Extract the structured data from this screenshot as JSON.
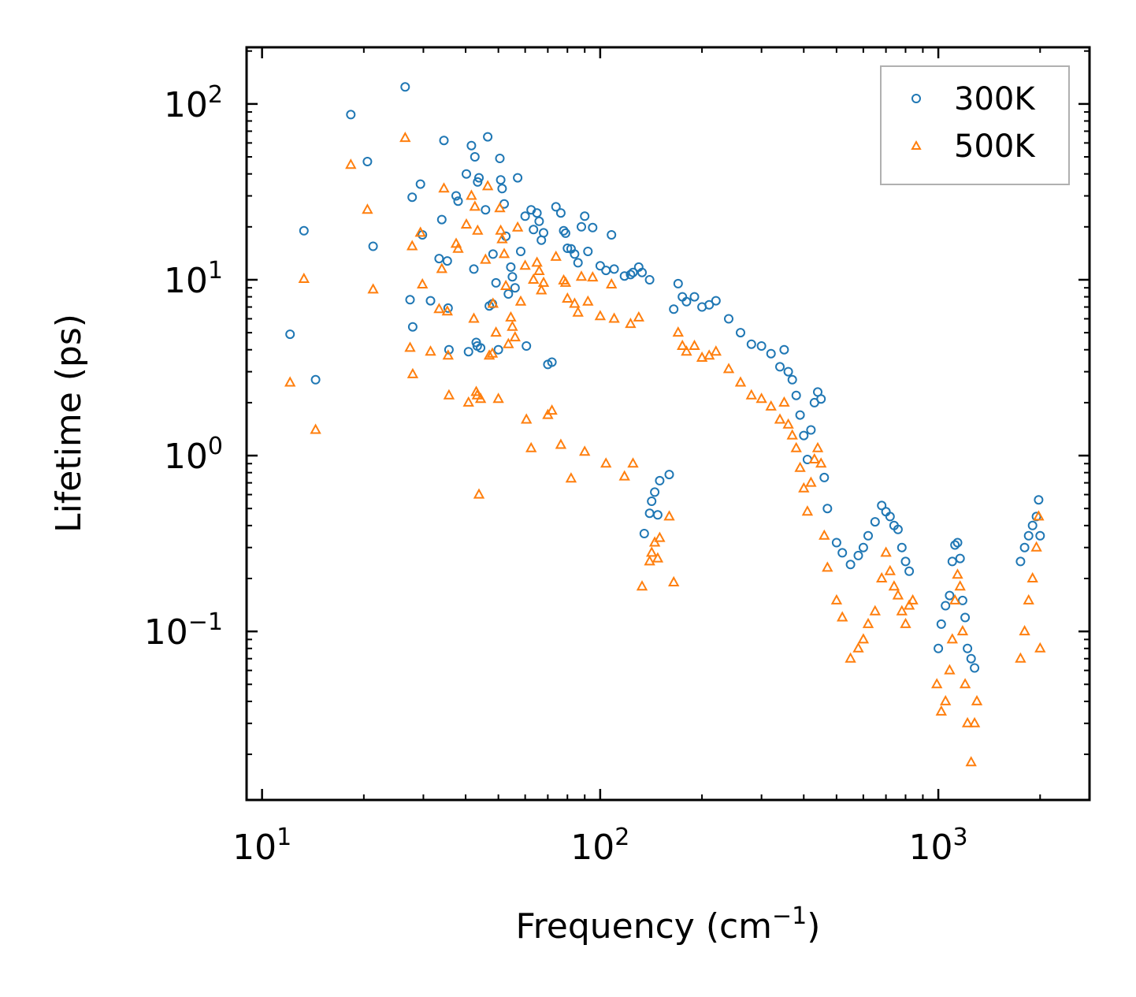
{
  "chart_data": {
    "type": "scatter",
    "xscale": "log",
    "yscale": "log",
    "xlim": [
      9,
      2800
    ],
    "ylim": [
      0.011,
      210
    ],
    "xticks": [
      {
        "value": 10,
        "base": "10",
        "exp": "1"
      },
      {
        "value": 100,
        "base": "10",
        "exp": "2"
      },
      {
        "value": 1000,
        "base": "10",
        "exp": "3"
      }
    ],
    "yticks": [
      {
        "value": 0.1,
        "base": "10",
        "exp": "−1"
      },
      {
        "value": 1,
        "base": "10",
        "exp": "0"
      },
      {
        "value": 10,
        "base": "10",
        "exp": "1"
      },
      {
        "value": 100,
        "base": "10",
        "exp": "2"
      }
    ],
    "xlabel": {
      "main": "Frequency (cm",
      "sup": "−1",
      "end": ")"
    },
    "ylabel": "Lifetime (ps)",
    "legend_position": "top-right",
    "series": [
      {
        "name": "300K",
        "marker": "circle",
        "color": "#1f77b4",
        "points": [
          [
            12.1,
            4.9
          ],
          [
            13.3,
            19.0
          ],
          [
            14.4,
            2.7
          ],
          [
            18.3,
            87
          ],
          [
            20.5,
            47
          ],
          [
            21.3,
            15.5
          ],
          [
            26.5,
            125
          ],
          [
            27.4,
            7.7
          ],
          [
            27.8,
            29.5
          ],
          [
            27.9,
            5.4
          ],
          [
            29.4,
            35
          ],
          [
            29.8,
            18
          ],
          [
            31.5,
            7.6
          ],
          [
            33.4,
            13.2
          ],
          [
            34.0,
            22
          ],
          [
            34.5,
            62
          ],
          [
            35.3,
            12.8
          ],
          [
            35.5,
            6.9
          ],
          [
            35.7,
            4.0
          ],
          [
            37.5,
            30
          ],
          [
            38.0,
            28
          ],
          [
            40.2,
            40
          ],
          [
            40.8,
            3.9
          ],
          [
            41.6,
            58
          ],
          [
            42.3,
            11.5
          ],
          [
            42.6,
            50
          ],
          [
            43.0,
            4.4
          ],
          [
            43.3,
            4.2
          ],
          [
            43.4,
            36
          ],
          [
            43.8,
            38
          ],
          [
            44.3,
            4.1
          ],
          [
            45.8,
            25
          ],
          [
            46.5,
            65
          ],
          [
            47.0,
            7.1
          ],
          [
            48.0,
            7.3
          ],
          [
            48.2,
            14
          ],
          [
            49.2,
            9.6
          ],
          [
            50.0,
            4.0
          ],
          [
            50.5,
            49
          ],
          [
            50.8,
            37
          ],
          [
            51.3,
            33
          ],
          [
            52.0,
            27
          ],
          [
            52.6,
            17.7
          ],
          [
            53.5,
            8.3
          ],
          [
            54.4,
            11.8
          ],
          [
            55.0,
            10.4
          ],
          [
            56.0,
            9.0
          ],
          [
            57.0,
            38
          ],
          [
            58.2,
            14.5
          ],
          [
            60.0,
            23
          ],
          [
            60.5,
            4.2
          ],
          [
            62.5,
            25
          ],
          [
            63.5,
            19.3
          ],
          [
            65.0,
            24
          ],
          [
            66.0,
            21.5
          ],
          [
            67.0,
            16.8
          ],
          [
            68.0,
            18.5
          ],
          [
            70.0,
            3.3
          ],
          [
            72.0,
            3.4
          ],
          [
            74.0,
            26
          ],
          [
            76.5,
            24
          ],
          [
            78.0,
            19
          ],
          [
            79.0,
            18.4
          ],
          [
            80.0,
            15.1
          ],
          [
            82.0,
            15
          ],
          [
            84.0,
            14
          ],
          [
            86.0,
            12.5
          ],
          [
            88.0,
            20
          ],
          [
            90.0,
            23
          ],
          [
            92.0,
            14.5
          ],
          [
            95.0,
            19.8
          ],
          [
            100.0,
            12
          ],
          [
            104.0,
            11.3
          ],
          [
            108.0,
            18
          ],
          [
            110.0,
            11.5
          ],
          [
            118.0,
            10.5
          ],
          [
            123.0,
            10.7
          ],
          [
            125.0,
            11.0
          ],
          [
            130.0,
            11.8
          ],
          [
            133.0,
            11.0
          ],
          [
            140.0,
            10.0
          ],
          [
            135.0,
            0.36
          ],
          [
            140.0,
            0.47
          ],
          [
            142.0,
            0.55
          ],
          [
            145.0,
            0.62
          ],
          [
            148.0,
            0.46
          ],
          [
            150.0,
            0.72
          ],
          [
            160.0,
            0.78
          ],
          [
            165.0,
            6.8
          ],
          [
            170.0,
            9.5
          ],
          [
            175.0,
            8.0
          ],
          [
            180.0,
            7.5
          ],
          [
            190.0,
            8.0
          ],
          [
            200.0,
            7.0
          ],
          [
            210.0,
            7.2
          ],
          [
            220.0,
            7.6
          ],
          [
            240.0,
            6.0
          ],
          [
            260.0,
            5.0
          ],
          [
            280.0,
            4.3
          ],
          [
            300.0,
            4.2
          ],
          [
            320.0,
            3.8
          ],
          [
            340.0,
            3.2
          ],
          [
            350.0,
            4.0
          ],
          [
            360.0,
            3.0
          ],
          [
            370.0,
            2.7
          ],
          [
            380.0,
            2.2
          ],
          [
            390.0,
            1.7
          ],
          [
            400.0,
            1.3
          ],
          [
            410.0,
            0.95
          ],
          [
            420.0,
            1.4
          ],
          [
            430.0,
            2.0
          ],
          [
            440.0,
            2.3
          ],
          [
            450.0,
            2.1
          ],
          [
            460.0,
            0.75
          ],
          [
            470.0,
            0.5
          ],
          [
            500.0,
            0.32
          ],
          [
            520.0,
            0.28
          ],
          [
            550.0,
            0.24
          ],
          [
            580.0,
            0.27
          ],
          [
            600.0,
            0.3
          ],
          [
            620.0,
            0.35
          ],
          [
            650.0,
            0.42
          ],
          [
            680.0,
            0.52
          ],
          [
            700.0,
            0.48
          ],
          [
            720.0,
            0.45
          ],
          [
            740.0,
            0.4
          ],
          [
            760.0,
            0.38
          ],
          [
            780.0,
            0.3
          ],
          [
            800.0,
            0.25
          ],
          [
            820.0,
            0.22
          ],
          [
            1000.0,
            0.08
          ],
          [
            1020.0,
            0.11
          ],
          [
            1050.0,
            0.14
          ],
          [
            1080.0,
            0.16
          ],
          [
            1100.0,
            0.25
          ],
          [
            1120.0,
            0.31
          ],
          [
            1140.0,
            0.32
          ],
          [
            1160.0,
            0.26
          ],
          [
            1180.0,
            0.15
          ],
          [
            1200.0,
            0.12
          ],
          [
            1220.0,
            0.08
          ],
          [
            1250.0,
            0.07
          ],
          [
            1280.0,
            0.062
          ],
          [
            1750.0,
            0.25
          ],
          [
            1800.0,
            0.3
          ],
          [
            1850.0,
            0.35
          ],
          [
            1900.0,
            0.4
          ],
          [
            1950.0,
            0.45
          ],
          [
            1980.0,
            0.56
          ],
          [
            2000.0,
            0.35
          ]
        ]
      },
      {
        "name": "500K",
        "marker": "triangle",
        "color": "#ff7f0e",
        "points": [
          [
            12.1,
            2.6
          ],
          [
            13.3,
            10.1
          ],
          [
            14.4,
            1.4
          ],
          [
            18.3,
            45
          ],
          [
            20.5,
            25
          ],
          [
            21.3,
            8.8
          ],
          [
            26.5,
            64
          ],
          [
            27.4,
            4.1
          ],
          [
            27.8,
            15.5
          ],
          [
            27.9,
            2.9
          ],
          [
            29.4,
            18.5
          ],
          [
            29.8,
            9.4
          ],
          [
            31.5,
            3.9
          ],
          [
            33.4,
            6.8
          ],
          [
            34.0,
            11.5
          ],
          [
            34.5,
            33
          ],
          [
            35.3,
            6.6
          ],
          [
            35.5,
            3.7
          ],
          [
            35.7,
            2.2
          ],
          [
            37.5,
            16
          ],
          [
            38.0,
            15
          ],
          [
            40.2,
            20.6
          ],
          [
            40.8,
            2.0
          ],
          [
            41.6,
            30
          ],
          [
            42.3,
            6.0
          ],
          [
            42.6,
            26
          ],
          [
            43.0,
            2.3
          ],
          [
            43.3,
            2.2
          ],
          [
            43.4,
            19
          ],
          [
            43.8,
            0.6
          ],
          [
            44.3,
            2.1
          ],
          [
            45.8,
            13
          ],
          [
            46.5,
            34
          ],
          [
            47.0,
            3.7
          ],
          [
            48.0,
            3.8
          ],
          [
            48.2,
            7.3
          ],
          [
            49.2,
            5.0
          ],
          [
            50.0,
            2.1
          ],
          [
            50.5,
            25.5
          ],
          [
            50.8,
            19
          ],
          [
            51.3,
            17
          ],
          [
            52.0,
            14
          ],
          [
            52.6,
            9.2
          ],
          [
            53.5,
            4.3
          ],
          [
            54.4,
            6.1
          ],
          [
            55.0,
            5.4
          ],
          [
            56.0,
            4.7
          ],
          [
            57.0,
            19.8
          ],
          [
            58.2,
            7.5
          ],
          [
            60.0,
            12
          ],
          [
            60.5,
            1.6
          ],
          [
            62.5,
            1.1
          ],
          [
            63.5,
            10
          ],
          [
            65.0,
            12.5
          ],
          [
            66.0,
            11.2
          ],
          [
            67.0,
            8.7
          ],
          [
            68.0,
            9.6
          ],
          [
            70.0,
            1.7
          ],
          [
            72.0,
            1.8
          ],
          [
            74.0,
            13.5
          ],
          [
            76.5,
            1.15
          ],
          [
            78.0,
            9.9
          ],
          [
            79.0,
            9.6
          ],
          [
            80.0,
            7.8
          ],
          [
            82.0,
            0.74
          ],
          [
            84.0,
            7.3
          ],
          [
            86.0,
            6.5
          ],
          [
            88.0,
            10.4
          ],
          [
            90.0,
            1.05
          ],
          [
            92.0,
            7.5
          ],
          [
            95.0,
            10.3
          ],
          [
            100.0,
            6.2
          ],
          [
            104.0,
            0.9
          ],
          [
            108.0,
            9.4
          ],
          [
            110.0,
            6.0
          ],
          [
            118.0,
            0.76
          ],
          [
            123.0,
            5.6
          ],
          [
            125.0,
            0.9
          ],
          [
            130.0,
            6.1
          ],
          [
            133.0,
            0.18
          ],
          [
            140.0,
            0.25
          ],
          [
            142.0,
            0.28
          ],
          [
            145.0,
            0.32
          ],
          [
            148.0,
            0.26
          ],
          [
            150.0,
            0.34
          ],
          [
            160.0,
            0.45
          ],
          [
            165.0,
            0.19
          ],
          [
            170.0,
            5.0
          ],
          [
            175.0,
            4.2
          ],
          [
            180.0,
            3.9
          ],
          [
            190.0,
            4.2
          ],
          [
            200.0,
            3.6
          ],
          [
            210.0,
            3.7
          ],
          [
            220.0,
            3.9
          ],
          [
            240.0,
            3.1
          ],
          [
            260.0,
            2.6
          ],
          [
            280.0,
            2.2
          ],
          [
            300.0,
            2.1
          ],
          [
            320.0,
            1.9
          ],
          [
            340.0,
            1.6
          ],
          [
            350.0,
            2.0
          ],
          [
            360.0,
            1.5
          ],
          [
            370.0,
            1.3
          ],
          [
            380.0,
            1.1
          ],
          [
            390.0,
            0.85
          ],
          [
            400.0,
            0.65
          ],
          [
            410.0,
            0.48
          ],
          [
            420.0,
            0.7
          ],
          [
            430.0,
            0.95
          ],
          [
            440.0,
            1.1
          ],
          [
            450.0,
            0.9
          ],
          [
            460.0,
            0.35
          ],
          [
            470.0,
            0.23
          ],
          [
            500.0,
            0.15
          ],
          [
            520.0,
            0.12
          ],
          [
            550.0,
            0.07
          ],
          [
            580.0,
            0.08
          ],
          [
            600.0,
            0.09
          ],
          [
            620.0,
            0.11
          ],
          [
            650.0,
            0.13
          ],
          [
            680.0,
            0.2
          ],
          [
            700.0,
            0.28
          ],
          [
            720.0,
            0.22
          ],
          [
            740.0,
            0.18
          ],
          [
            760.0,
            0.16
          ],
          [
            780.0,
            0.13
          ],
          [
            800.0,
            0.11
          ],
          [
            820.0,
            0.14
          ],
          [
            840.0,
            0.15
          ],
          [
            990.0,
            0.05
          ],
          [
            1020.0,
            0.035
          ],
          [
            1050.0,
            0.04
          ],
          [
            1080.0,
            0.06
          ],
          [
            1100.0,
            0.09
          ],
          [
            1120.0,
            0.15
          ],
          [
            1140.0,
            0.21
          ],
          [
            1160.0,
            0.18
          ],
          [
            1180.0,
            0.1
          ],
          [
            1200.0,
            0.05
          ],
          [
            1220.0,
            0.03
          ],
          [
            1250.0,
            0.018
          ],
          [
            1280.0,
            0.03
          ],
          [
            1300.0,
            0.04
          ],
          [
            1750.0,
            0.07
          ],
          [
            1800.0,
            0.1
          ],
          [
            1850.0,
            0.15
          ],
          [
            1900.0,
            0.2
          ],
          [
            1950.0,
            0.3
          ],
          [
            1980.0,
            0.45
          ],
          [
            2000.0,
            0.08
          ]
        ]
      }
    ]
  }
}
